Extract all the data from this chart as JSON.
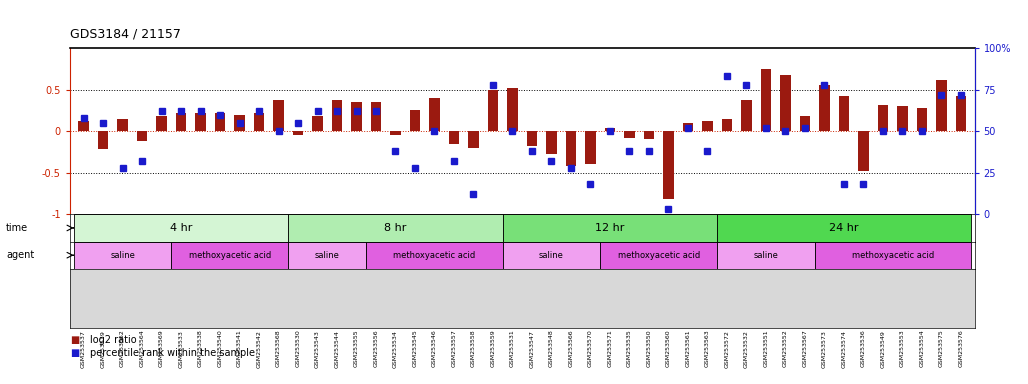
{
  "title": "GDS3184 / 21157",
  "samples": [
    "GSM253537",
    "GSM253539",
    "GSM253562",
    "GSM253564",
    "GSM253569",
    "GSM253533",
    "GSM253538",
    "GSM253540",
    "GSM253541",
    "GSM253542",
    "GSM253568",
    "GSM253530",
    "GSM253543",
    "GSM253544",
    "GSM253555",
    "GSM253556",
    "GSM253534",
    "GSM253545",
    "GSM253546",
    "GSM253557",
    "GSM253558",
    "GSM253559",
    "GSM253531",
    "GSM253547",
    "GSM253548",
    "GSM253566",
    "GSM253570",
    "GSM253571",
    "GSM253535",
    "GSM253550",
    "GSM253560",
    "GSM253561",
    "GSM253563",
    "GSM253572",
    "GSM253532",
    "GSM253551",
    "GSM253552",
    "GSM253567",
    "GSM253573",
    "GSM253574",
    "GSM253536",
    "GSM253549",
    "GSM253553",
    "GSM253554",
    "GSM253575",
    "GSM253576"
  ],
  "log2_ratio": [
    0.12,
    -0.22,
    0.15,
    -0.12,
    0.18,
    0.22,
    0.22,
    0.22,
    0.2,
    0.22,
    0.38,
    -0.04,
    0.18,
    0.38,
    0.35,
    0.35,
    -0.05,
    0.25,
    0.4,
    -0.15,
    -0.2,
    0.5,
    0.52,
    -0.18,
    -0.28,
    -0.42,
    -0.4,
    0.04,
    -0.08,
    -0.1,
    -0.82,
    0.1,
    0.12,
    0.15,
    0.38,
    0.75,
    0.68,
    0.18,
    0.55,
    0.42,
    -0.48,
    0.32,
    0.3,
    0.28,
    0.62,
    0.42
  ],
  "percentile": [
    58,
    55,
    28,
    32,
    62,
    62,
    62,
    60,
    55,
    62,
    50,
    55,
    62,
    62,
    62,
    62,
    38,
    28,
    50,
    32,
    12,
    78,
    50,
    38,
    32,
    28,
    18,
    50,
    38,
    38,
    3,
    52,
    38,
    83,
    78,
    52,
    50,
    52,
    78,
    18,
    18,
    50,
    50,
    50,
    72,
    72
  ],
  "time_groups": [
    {
      "label": "4 hr",
      "start": 0,
      "end": 11,
      "color": "#d4f5d4"
    },
    {
      "label": "8 hr",
      "start": 11,
      "end": 22,
      "color": "#b0edb0"
    },
    {
      "label": "12 hr",
      "start": 22,
      "end": 33,
      "color": "#78e078"
    },
    {
      "label": "24 hr",
      "start": 33,
      "end": 46,
      "color": "#50d850"
    }
  ],
  "agent_groups": [
    {
      "label": "saline",
      "start": 0,
      "end": 5,
      "color": "#f0a0f0"
    },
    {
      "label": "methoxyacetic acid",
      "start": 5,
      "end": 11,
      "color": "#e060e0"
    },
    {
      "label": "saline",
      "start": 11,
      "end": 15,
      "color": "#f0a0f0"
    },
    {
      "label": "methoxyacetic acid",
      "start": 15,
      "end": 22,
      "color": "#e060e0"
    },
    {
      "label": "saline",
      "start": 22,
      "end": 27,
      "color": "#f0a0f0"
    },
    {
      "label": "methoxyacetic acid",
      "start": 27,
      "end": 33,
      "color": "#e060e0"
    },
    {
      "label": "saline",
      "start": 33,
      "end": 38,
      "color": "#f0a0f0"
    },
    {
      "label": "methoxyacetic acid",
      "start": 38,
      "end": 46,
      "color": "#e060e0"
    }
  ],
  "bar_color": "#9b1a10",
  "dot_color": "#1a1acc",
  "ylim_left": [
    -1.0,
    1.0
  ],
  "ylim_right": [
    0,
    100
  ],
  "yticks_left": [
    -1.0,
    -0.5,
    0.0,
    0.5
  ],
  "ytick_labels_left": [
    "-1",
    "-0.5",
    "0",
    "0.5"
  ],
  "yticks_right": [
    0,
    25,
    50,
    75,
    100
  ],
  "ytick_labels_right": [
    "0",
    "25",
    "50",
    "75",
    "100%"
  ],
  "hlines_dotted": [
    -0.5,
    0.5
  ],
  "hline_red": 0.0,
  "legend_items": [
    {
      "label": "log2 ratio",
      "color": "#9b1a10"
    },
    {
      "label": "percentile rank within the sample",
      "color": "#1a1acc"
    }
  ],
  "bg_xlab": "#d8d8d8",
  "bar_width": 0.55
}
